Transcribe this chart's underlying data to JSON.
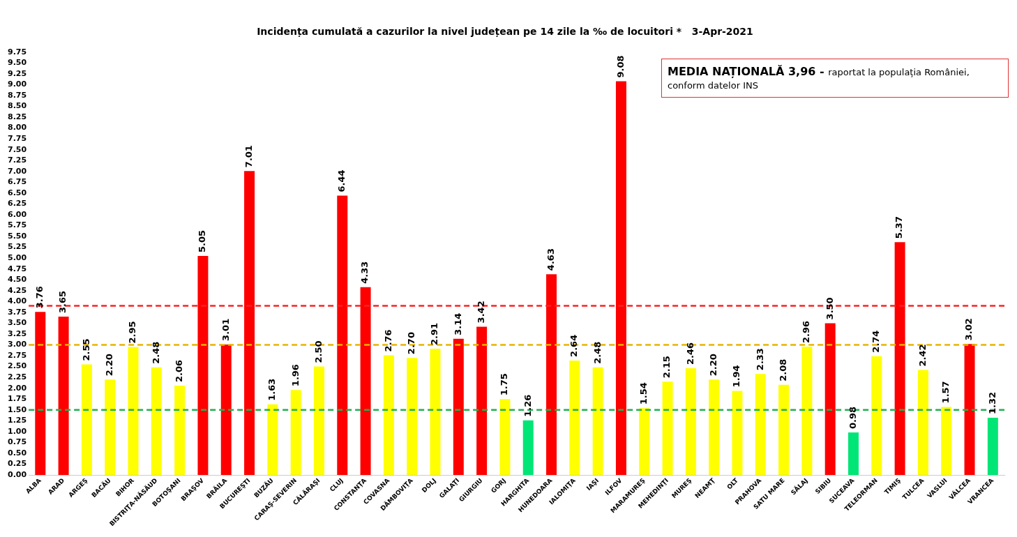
{
  "chart_data": {
    "type": "bar",
    "title": "Incidența cumulată a cazurilor la nivel județean pe 14 zile la ‰ de locuitori *   3-Apr-2021",
    "categories": [
      "ALBA",
      "ARAD",
      "ARGEŞ",
      "BACĂU",
      "BIHOR",
      "BISTRIŢA-NĂSĂUD",
      "BOTOŞANI",
      "BRAŞOV",
      "BRĂILA",
      "BUCUREŞTI",
      "BUZĂU",
      "CARAŞ-SEVERIN",
      "CĂLĂRAŞI",
      "CLUJ",
      "CONSTANŢA",
      "COVASNA",
      "DÂMBOVIŢA",
      "DOLJ",
      "GALAŢI",
      "GIURGIU",
      "GORJ",
      "HARGHITA",
      "HUNEDOARA",
      "IALOMIŢA",
      "IAŞI",
      "ILFOV",
      "MARAMUREŞ",
      "MEHEDINŢI",
      "MUREŞ",
      "NEAMŢ",
      "OLT",
      "PRAHOVA",
      "SATU MARE",
      "SĂLAJ",
      "SIBIU",
      "SUCEAVA",
      "TELEORMAN",
      "TIMIŞ",
      "TULCEA",
      "VASLUI",
      "VÂLCEA",
      "VRANCEA"
    ],
    "values": [
      3.76,
      3.65,
      2.55,
      2.2,
      2.95,
      2.48,
      2.06,
      5.05,
      3.01,
      7.01,
      1.63,
      1.96,
      2.5,
      6.44,
      4.33,
      2.76,
      2.7,
      2.91,
      3.14,
      3.42,
      1.75,
      1.26,
      4.63,
      2.64,
      2.48,
      9.08,
      1.54,
      2.15,
      2.46,
      2.2,
      1.94,
      2.33,
      2.08,
      2.96,
      3.5,
      0.98,
      2.74,
      5.37,
      2.42,
      1.57,
      3.02,
      1.32
    ],
    "colors": [
      "#ff0000",
      "#ff0000",
      "#ffff00",
      "#ffff00",
      "#ffff00",
      "#ffff00",
      "#ffff00",
      "#ff0000",
      "#ff0000",
      "#ff0000",
      "#ffff00",
      "#ffff00",
      "#ffff00",
      "#ff0000",
      "#ff0000",
      "#ffff00",
      "#ffff00",
      "#ffff00",
      "#ff0000",
      "#ff0000",
      "#ffff00",
      "#00e676",
      "#ff0000",
      "#ffff00",
      "#ffff00",
      "#ff0000",
      "#ffff00",
      "#ffff00",
      "#ffff00",
      "#ffff00",
      "#ffff00",
      "#ffff00",
      "#ffff00",
      "#ffff00",
      "#ff0000",
      "#00e676",
      "#ffff00",
      "#ff0000",
      "#ffff00",
      "#ffff00",
      "#ff0000",
      "#00e676"
    ],
    "value_labels": [
      "3.76",
      "3.65",
      "2.55",
      "2.20",
      "2.95",
      "2.48",
      "2.06",
      "5.05",
      "3.01",
      "7.01",
      "1.63",
      "1.96",
      "2.50",
      "6.44",
      "4.33",
      "2.76",
      "2.70",
      "2.91",
      "3.14",
      "3.42",
      "1.75",
      "1.26",
      "4.63",
      "2.64",
      "2.48",
      "9.08",
      "1.54",
      "2.15",
      "2.46",
      "2.20",
      "1.94",
      "2.33",
      "2.08",
      "2.96",
      "3.50",
      "0.98",
      "2.74",
      "5.37",
      "2.42",
      "1.57",
      "3.02",
      "1.32"
    ],
    "ylim": [
      0,
      9.75
    ],
    "yticks": [
      {
        "value": 0,
        "label": "0.00"
      },
      {
        "value": 0.25,
        "label": "0.25"
      },
      {
        "value": 0.5,
        "label": "0.50"
      },
      {
        "value": 0.75,
        "label": "0.75"
      },
      {
        "value": 1,
        "label": "1.00"
      },
      {
        "value": 1.25,
        "label": "1.25"
      },
      {
        "value": 1.5,
        "label": "1.50"
      },
      {
        "value": 1.75,
        "label": "1.75"
      },
      {
        "value": 2,
        "label": "2.00"
      },
      {
        "value": 2.25,
        "label": "2.25"
      },
      {
        "value": 2.5,
        "label": "2.50"
      },
      {
        "value": 2.75,
        "label": "2.75"
      },
      {
        "value": 3,
        "label": "3.00"
      },
      {
        "value": 3.25,
        "label": "3.25"
      },
      {
        "value": 3.5,
        "label": "3.50"
      },
      {
        "value": 3.75,
        "label": "3.75"
      },
      {
        "value": 4,
        "label": "4.00"
      },
      {
        "value": 4.25,
        "label": "4.25"
      },
      {
        "value": 4.5,
        "label": "4.50"
      },
      {
        "value": 4.75,
        "label": "4.75"
      },
      {
        "value": 5,
        "label": "5.00"
      },
      {
        "value": 5.25,
        "label": "5.25"
      },
      {
        "value": 5.5,
        "label": "5.50"
      },
      {
        "value": 5.75,
        "label": "5.75"
      },
      {
        "value": 6,
        "label": "6.00"
      },
      {
        "value": 6.25,
        "label": "6.25"
      },
      {
        "value": 6.5,
        "label": "6.50"
      },
      {
        "value": 6.75,
        "label": "6.75"
      },
      {
        "value": 7,
        "label": "7.00"
      },
      {
        "value": 7.25,
        "label": "7.25"
      },
      {
        "value": 7.5,
        "label": "7.50"
      },
      {
        "value": 7.75,
        "label": "7.75"
      },
      {
        "value": 8,
        "label": "8.00"
      },
      {
        "value": 8.25,
        "label": "8.25"
      },
      {
        "value": 8.5,
        "label": "8.50"
      },
      {
        "value": 8.75,
        "label": "8.75"
      },
      {
        "value": 9,
        "label": "9.00"
      },
      {
        "value": 9.25,
        "label": "9.25"
      },
      {
        "value": 9.5,
        "label": "9.50"
      },
      {
        "value": 9.75,
        "label": "9.75"
      }
    ],
    "ref_lines": [
      {
        "axis": "y",
        "value": 3.9,
        "color": "#ff2020",
        "line_style": "dashed"
      },
      {
        "axis": "y",
        "value": 3,
        "color": "#e6b400",
        "line_style": "dashed"
      },
      {
        "axis": "y",
        "value": 1.5,
        "color": "#20b050",
        "line_style": "dashed"
      }
    ],
    "annotations": [
      "MEDIA NAȚIONALĂ  3,96 -",
      "raportat la populația României, conform datelor INS"
    ],
    "grid": false,
    "legend": false
  }
}
